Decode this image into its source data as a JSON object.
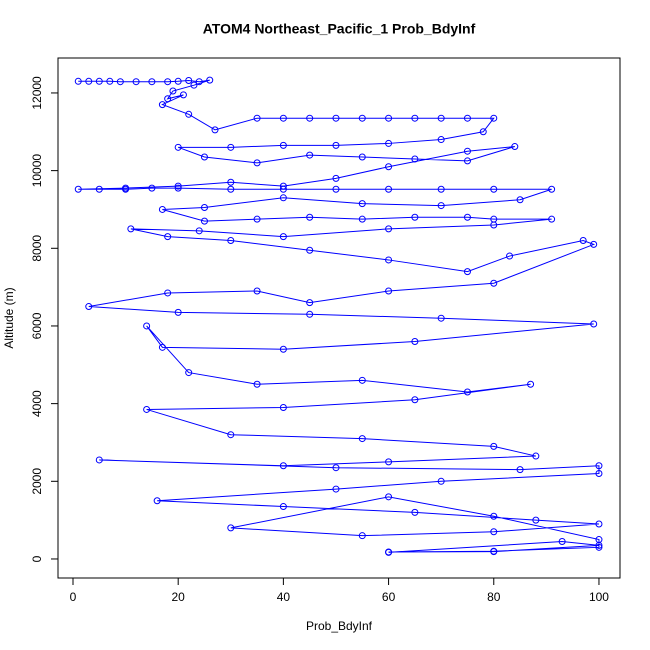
{
  "chart_data": {
    "type": "line",
    "title": "ATOM4 Northeast_Pacific_1 Prob_BdyInf",
    "x_label": "Prob_BdyInf",
    "y_label": "Altitude (m)",
    "color": "#0000ff",
    "marker": "circle",
    "xlim": [
      -2.85,
      104
    ],
    "ylim": [
      -490,
      12900
    ],
    "xticks": [
      0,
      20,
      40,
      60,
      80,
      100
    ],
    "yticks": [
      0,
      2000,
      4000,
      6000,
      8000,
      10000,
      12000
    ],
    "x": [
      1,
      3,
      5,
      7,
      9,
      12,
      15,
      18,
      20,
      22,
      24,
      26,
      23,
      19,
      18,
      21,
      17,
      22,
      27,
      35,
      40,
      45,
      50,
      55,
      60,
      65,
      70,
      75,
      80,
      78,
      70,
      60,
      50,
      40,
      30,
      20,
      25,
      35,
      45,
      55,
      65,
      75,
      84,
      75,
      60,
      50,
      40,
      30,
      20,
      10,
      1,
      5,
      10,
      15,
      20,
      30,
      40,
      50,
      60,
      70,
      80,
      91,
      85,
      70,
      55,
      40,
      25,
      17,
      25,
      35,
      45,
      55,
      65,
      75,
      80,
      91,
      80,
      60,
      40,
      24,
      11,
      18,
      30,
      45,
      60,
      75,
      83,
      97,
      99,
      80,
      60,
      45,
      35,
      18,
      3,
      20,
      45,
      70,
      99,
      65,
      40,
      17,
      14,
      22,
      35,
      55,
      75,
      87,
      65,
      40,
      14,
      30,
      55,
      80,
      88,
      60,
      40,
      5,
      50,
      85,
      100,
      100,
      70,
      50,
      16,
      40,
      65,
      88,
      100,
      80,
      55,
      30,
      60,
      80,
      100,
      100,
      80,
      60,
      80,
      100,
      93,
      60
    ],
    "values": [
      12300,
      12300,
      12300,
      12300,
      12290,
      12290,
      12290,
      12290,
      12300,
      12320,
      12290,
      12330,
      12200,
      12050,
      11850,
      11950,
      11700,
      11450,
      11050,
      11350,
      11350,
      11350,
      11350,
      11350,
      11350,
      11350,
      11350,
      11350,
      11350,
      11000,
      10800,
      10700,
      10650,
      10650,
      10600,
      10600,
      10350,
      10200,
      10400,
      10350,
      10300,
      10250,
      10620,
      10500,
      10100,
      9800,
      9600,
      9700,
      9600,
      9550,
      9520,
      9520,
      9520,
      9550,
      9550,
      9520,
      9520,
      9520,
      9520,
      9520,
      9520,
      9520,
      9250,
      9100,
      9150,
      9300,
      9050,
      9000,
      8700,
      8750,
      8800,
      8750,
      8800,
      8800,
      8750,
      8750,
      8600,
      8500,
      8300,
      8450,
      8500,
      8300,
      8200,
      7950,
      7700,
      7400,
      7800,
      8200,
      8100,
      7100,
      6900,
      6600,
      6900,
      6850,
      6500,
      6350,
      6300,
      6200,
      6050,
      5600,
      5400,
      5450,
      6000,
      4800,
      4500,
      4600,
      4300,
      4500,
      4100,
      3900,
      3850,
      3200,
      3100,
      2900,
      2650,
      2500,
      2400,
      2550,
      2350,
      2300,
      2400,
      2200,
      2000,
      1800,
      1500,
      1350,
      1200,
      1000,
      900,
      700,
      600,
      800,
      1600,
      1100,
      500,
      300,
      200,
      180,
      190,
      350,
      450,
      170
    ]
  }
}
